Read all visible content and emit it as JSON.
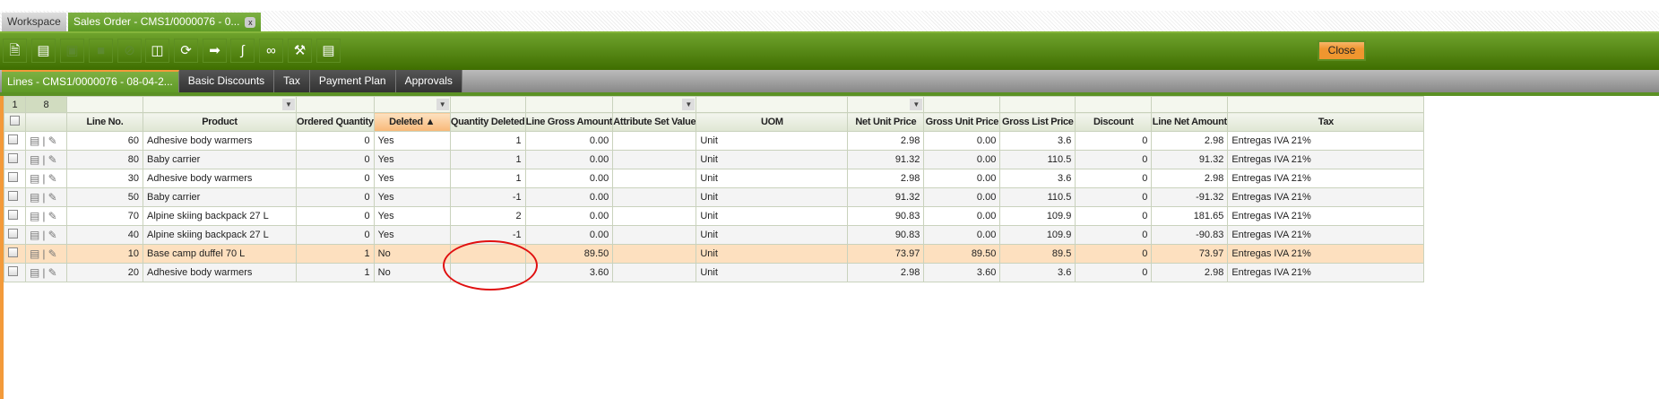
{
  "tabs": {
    "workspace": "Workspace",
    "sales_order": "Sales Order - CMS1/0000076 - 0...",
    "close_tab": "x"
  },
  "toolbar": {
    "close_label": "Close",
    "buttons": [
      "new-document-icon",
      "new-row-icon",
      "save-icon",
      "save-close-icon",
      "undo-icon",
      "delete-icon",
      "refresh-icon",
      "export-icon",
      "attachment-icon",
      "link-icon",
      "tools-icon",
      "grid-view-icon"
    ]
  },
  "subtabs": [
    "Lines - CMS1/0000076 - 08-04-2...",
    "Basic Discounts",
    "Tax",
    "Payment Plan",
    "Approvals"
  ],
  "grid": {
    "selected_count": "1",
    "total_count": "8",
    "columns": [
      "Line No.",
      "Product",
      "Ordered Quantity",
      "Deleted ▲",
      "Quantity Deleted",
      "Line Gross Amount",
      "Attribute Set Value",
      "UOM",
      "Net Unit Price",
      "Gross Unit Price",
      "Gross List Price",
      "Discount",
      "Line Net Amount",
      "Tax"
    ],
    "rows": [
      [
        "60",
        "Adhesive body warmers",
        "0",
        "Yes",
        "1",
        "0.00",
        "",
        "Unit",
        "2.98",
        "0.00",
        "3.6",
        "0",
        "2.98",
        "Entregas IVA 21%"
      ],
      [
        "80",
        "Baby carrier",
        "0",
        "Yes",
        "1",
        "0.00",
        "",
        "Unit",
        "91.32",
        "0.00",
        "110.5",
        "0",
        "91.32",
        "Entregas IVA 21%"
      ],
      [
        "30",
        "Adhesive body warmers",
        "0",
        "Yes",
        "1",
        "0.00",
        "",
        "Unit",
        "2.98",
        "0.00",
        "3.6",
        "0",
        "2.98",
        "Entregas IVA 21%"
      ],
      [
        "50",
        "Baby carrier",
        "0",
        "Yes",
        "-1",
        "0.00",
        "",
        "Unit",
        "91.32",
        "0.00",
        "110.5",
        "0",
        "-91.32",
        "Entregas IVA 21%"
      ],
      [
        "70",
        "Alpine skiing backpack 27 L",
        "0",
        "Yes",
        "2",
        "0.00",
        "",
        "Unit",
        "90.83",
        "0.00",
        "109.9",
        "0",
        "181.65",
        "Entregas IVA 21%"
      ],
      [
        "40",
        "Alpine skiing backpack 27 L",
        "0",
        "Yes",
        "-1",
        "0.00",
        "",
        "Unit",
        "90.83",
        "0.00",
        "109.9",
        "0",
        "-90.83",
        "Entregas IVA 21%"
      ],
      [
        "10",
        "Base camp duffel 70 L",
        "1",
        "No",
        "",
        "89.50",
        "",
        "Unit",
        "73.97",
        "89.50",
        "89.5",
        "0",
        "73.97",
        "Entregas IVA 21%"
      ],
      [
        "20",
        "Adhesive body warmers",
        "1",
        "No",
        "",
        "3.60",
        "",
        "Unit",
        "2.98",
        "3.60",
        "3.6",
        "0",
        "2.98",
        "Entregas IVA 21%"
      ]
    ],
    "selected_row": 6
  },
  "colors": {
    "accent_green": "#5e9a25",
    "accent_orange": "#f39a3a",
    "annotation_red": "#e01010"
  }
}
